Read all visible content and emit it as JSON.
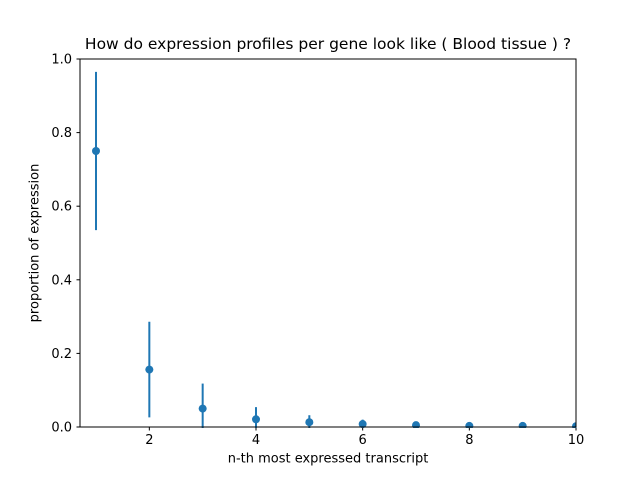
{
  "chart_data": {
    "type": "scatter",
    "title": "How do expression profiles per gene look like ( Blood tissue ) ?",
    "xlabel": "n-th most expressed transcript",
    "ylabel": "proportion of expression",
    "x": [
      1,
      2,
      3,
      4,
      5,
      6,
      7,
      8,
      9,
      10
    ],
    "y": [
      0.75,
      0.156,
      0.05,
      0.021,
      0.013,
      0.008,
      0.005,
      0.003,
      0.003,
      0.002
    ],
    "yerr": [
      0.215,
      0.13,
      0.068,
      0.033,
      0.019,
      0.012,
      0.008,
      0.006,
      0.004,
      0.003
    ],
    "xlim": [
      0.7,
      10
    ],
    "ylim": [
      0,
      1
    ],
    "xticks": [
      2,
      4,
      6,
      8,
      10
    ],
    "xtick_labels": [
      "2",
      "4",
      "6",
      "8",
      "10"
    ],
    "yticks": [
      0,
      0.2,
      0.4,
      0.6,
      0.8,
      1
    ],
    "ytick_labels": [
      "0.0",
      "0.2",
      "0.4",
      "0.6",
      "0.8",
      "1.0"
    ],
    "marker": "circle",
    "marker_color": "#1f77b4",
    "errorbar_color": "#1f77b4",
    "axis_color": "#000000",
    "background_color": "#ffffff",
    "grid": false,
    "legend": null,
    "error_bars_clipped_at_ylim": true
  }
}
